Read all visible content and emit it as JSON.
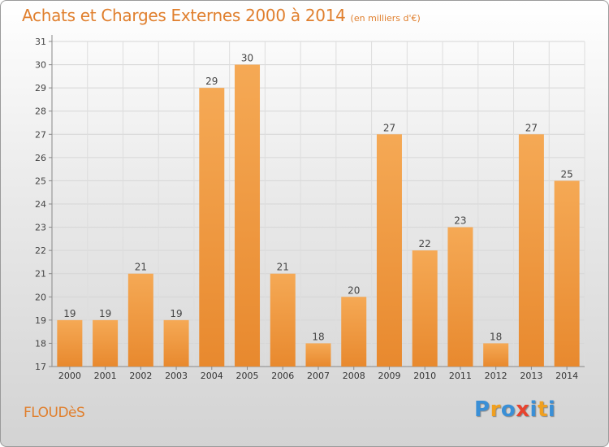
{
  "title": "Achats et Charges Externes 2000 à 2014",
  "subtitle": "(en milliers d'€)",
  "commune": "FLOUDèS",
  "logo": {
    "letters": [
      "P",
      "r",
      "o",
      "x",
      "i",
      "t",
      "i"
    ],
    "colors": [
      "#3a8fd6",
      "#f0a020",
      "#3a8fd6",
      "#e8432e",
      "#3a8fd6",
      "#f0a020",
      "#3a8fd6"
    ]
  },
  "colors": {
    "bar": "#e8892e",
    "bar_light": "#f5a955",
    "text": "#e07f2d"
  },
  "chart_data": {
    "type": "bar",
    "title": "Achats et Charges Externes 2000 à 2014",
    "subtitle": "(en milliers d'€)",
    "categories": [
      "2000",
      "2001",
      "2002",
      "2003",
      "2004",
      "2005",
      "2006",
      "2007",
      "2008",
      "2009",
      "2010",
      "2011",
      "2012",
      "2013",
      "2014"
    ],
    "values": [
      19,
      19,
      21,
      19,
      29,
      30,
      21,
      18,
      20,
      27,
      22,
      23,
      18,
      27,
      25
    ],
    "ylim": [
      17,
      31
    ],
    "yticks": [
      17,
      18,
      19,
      20,
      21,
      22,
      23,
      24,
      25,
      26,
      27,
      28,
      29,
      30,
      31
    ],
    "grid": true,
    "xlabel": "",
    "ylabel": ""
  }
}
